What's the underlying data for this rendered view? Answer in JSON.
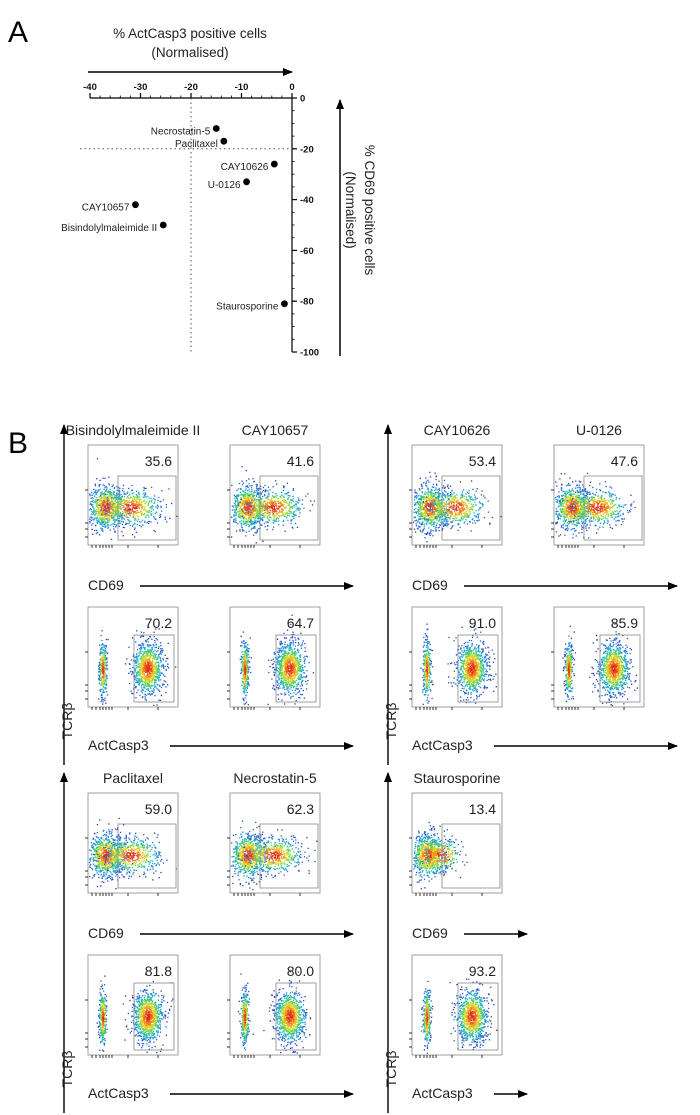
{
  "panel_a_letter": "A",
  "panel_b_letter": "B",
  "chart_data": [
    {
      "type": "scatter",
      "panel": "A",
      "x_axis_title": [
        "% ActCasp3 positive cells",
        "(Normalised)"
      ],
      "y_axis_title": [
        "% CD69 positive cells",
        "(Normalised)"
      ],
      "xlim": [
        -40,
        0
      ],
      "ylim": [
        -100,
        0
      ],
      "x_ticks": [
        -40,
        -30,
        -20,
        -10,
        0
      ],
      "y_ticks": [
        0,
        -20,
        -40,
        -60,
        -80,
        -100
      ],
      "reference_lines": {
        "x": -20,
        "y": -20
      },
      "points": [
        {
          "label": "Necrostatin-5",
          "x": -15,
          "y": -12
        },
        {
          "label": "Paclitaxel",
          "x": -13.5,
          "y": -17
        },
        {
          "label": "CAY10626",
          "x": -3.5,
          "y": -26
        },
        {
          "label": "U-0126",
          "x": -9,
          "y": -33
        },
        {
          "label": "CAY10657",
          "x": -31,
          "y": -42
        },
        {
          "label": "Bisindolylmaleimide II",
          "x": -25.5,
          "y": -50
        },
        {
          "label": "Staurosporine",
          "x": -1.5,
          "y": -81
        }
      ]
    },
    {
      "type": "heatmap",
      "panel": "B",
      "description": "flow cytometry density plots",
      "y_axis_label": "TCRβ",
      "x_axis_labels": {
        "top_row": "CD69",
        "bottom_row": "ActCasp3"
      },
      "groups": [
        {
          "plots": [
            {
              "name": "Bisindolylmaleimide II",
              "cd69_gate": "35.6",
              "actcasp3_gate": "70.2"
            },
            {
              "name": "CAY10657",
              "cd69_gate": "41.6",
              "actcasp3_gate": "64.7"
            }
          ]
        },
        {
          "plots": [
            {
              "name": "CAY10626",
              "cd69_gate": "53.4",
              "actcasp3_gate": "91.0"
            },
            {
              "name": "U-0126",
              "cd69_gate": "47.6",
              "actcasp3_gate": "85.9"
            }
          ]
        },
        {
          "plots": [
            {
              "name": "Paclitaxel",
              "cd69_gate": "59.0",
              "actcasp3_gate": "81.8"
            },
            {
              "name": "Necrostatin-5",
              "cd69_gate": "62.3",
              "actcasp3_gate": "80.0"
            }
          ]
        },
        {
          "plots": [
            {
              "name": "Staurosporine",
              "cd69_gate": "13.4",
              "actcasp3_gate": "93.2"
            }
          ]
        }
      ]
    }
  ]
}
